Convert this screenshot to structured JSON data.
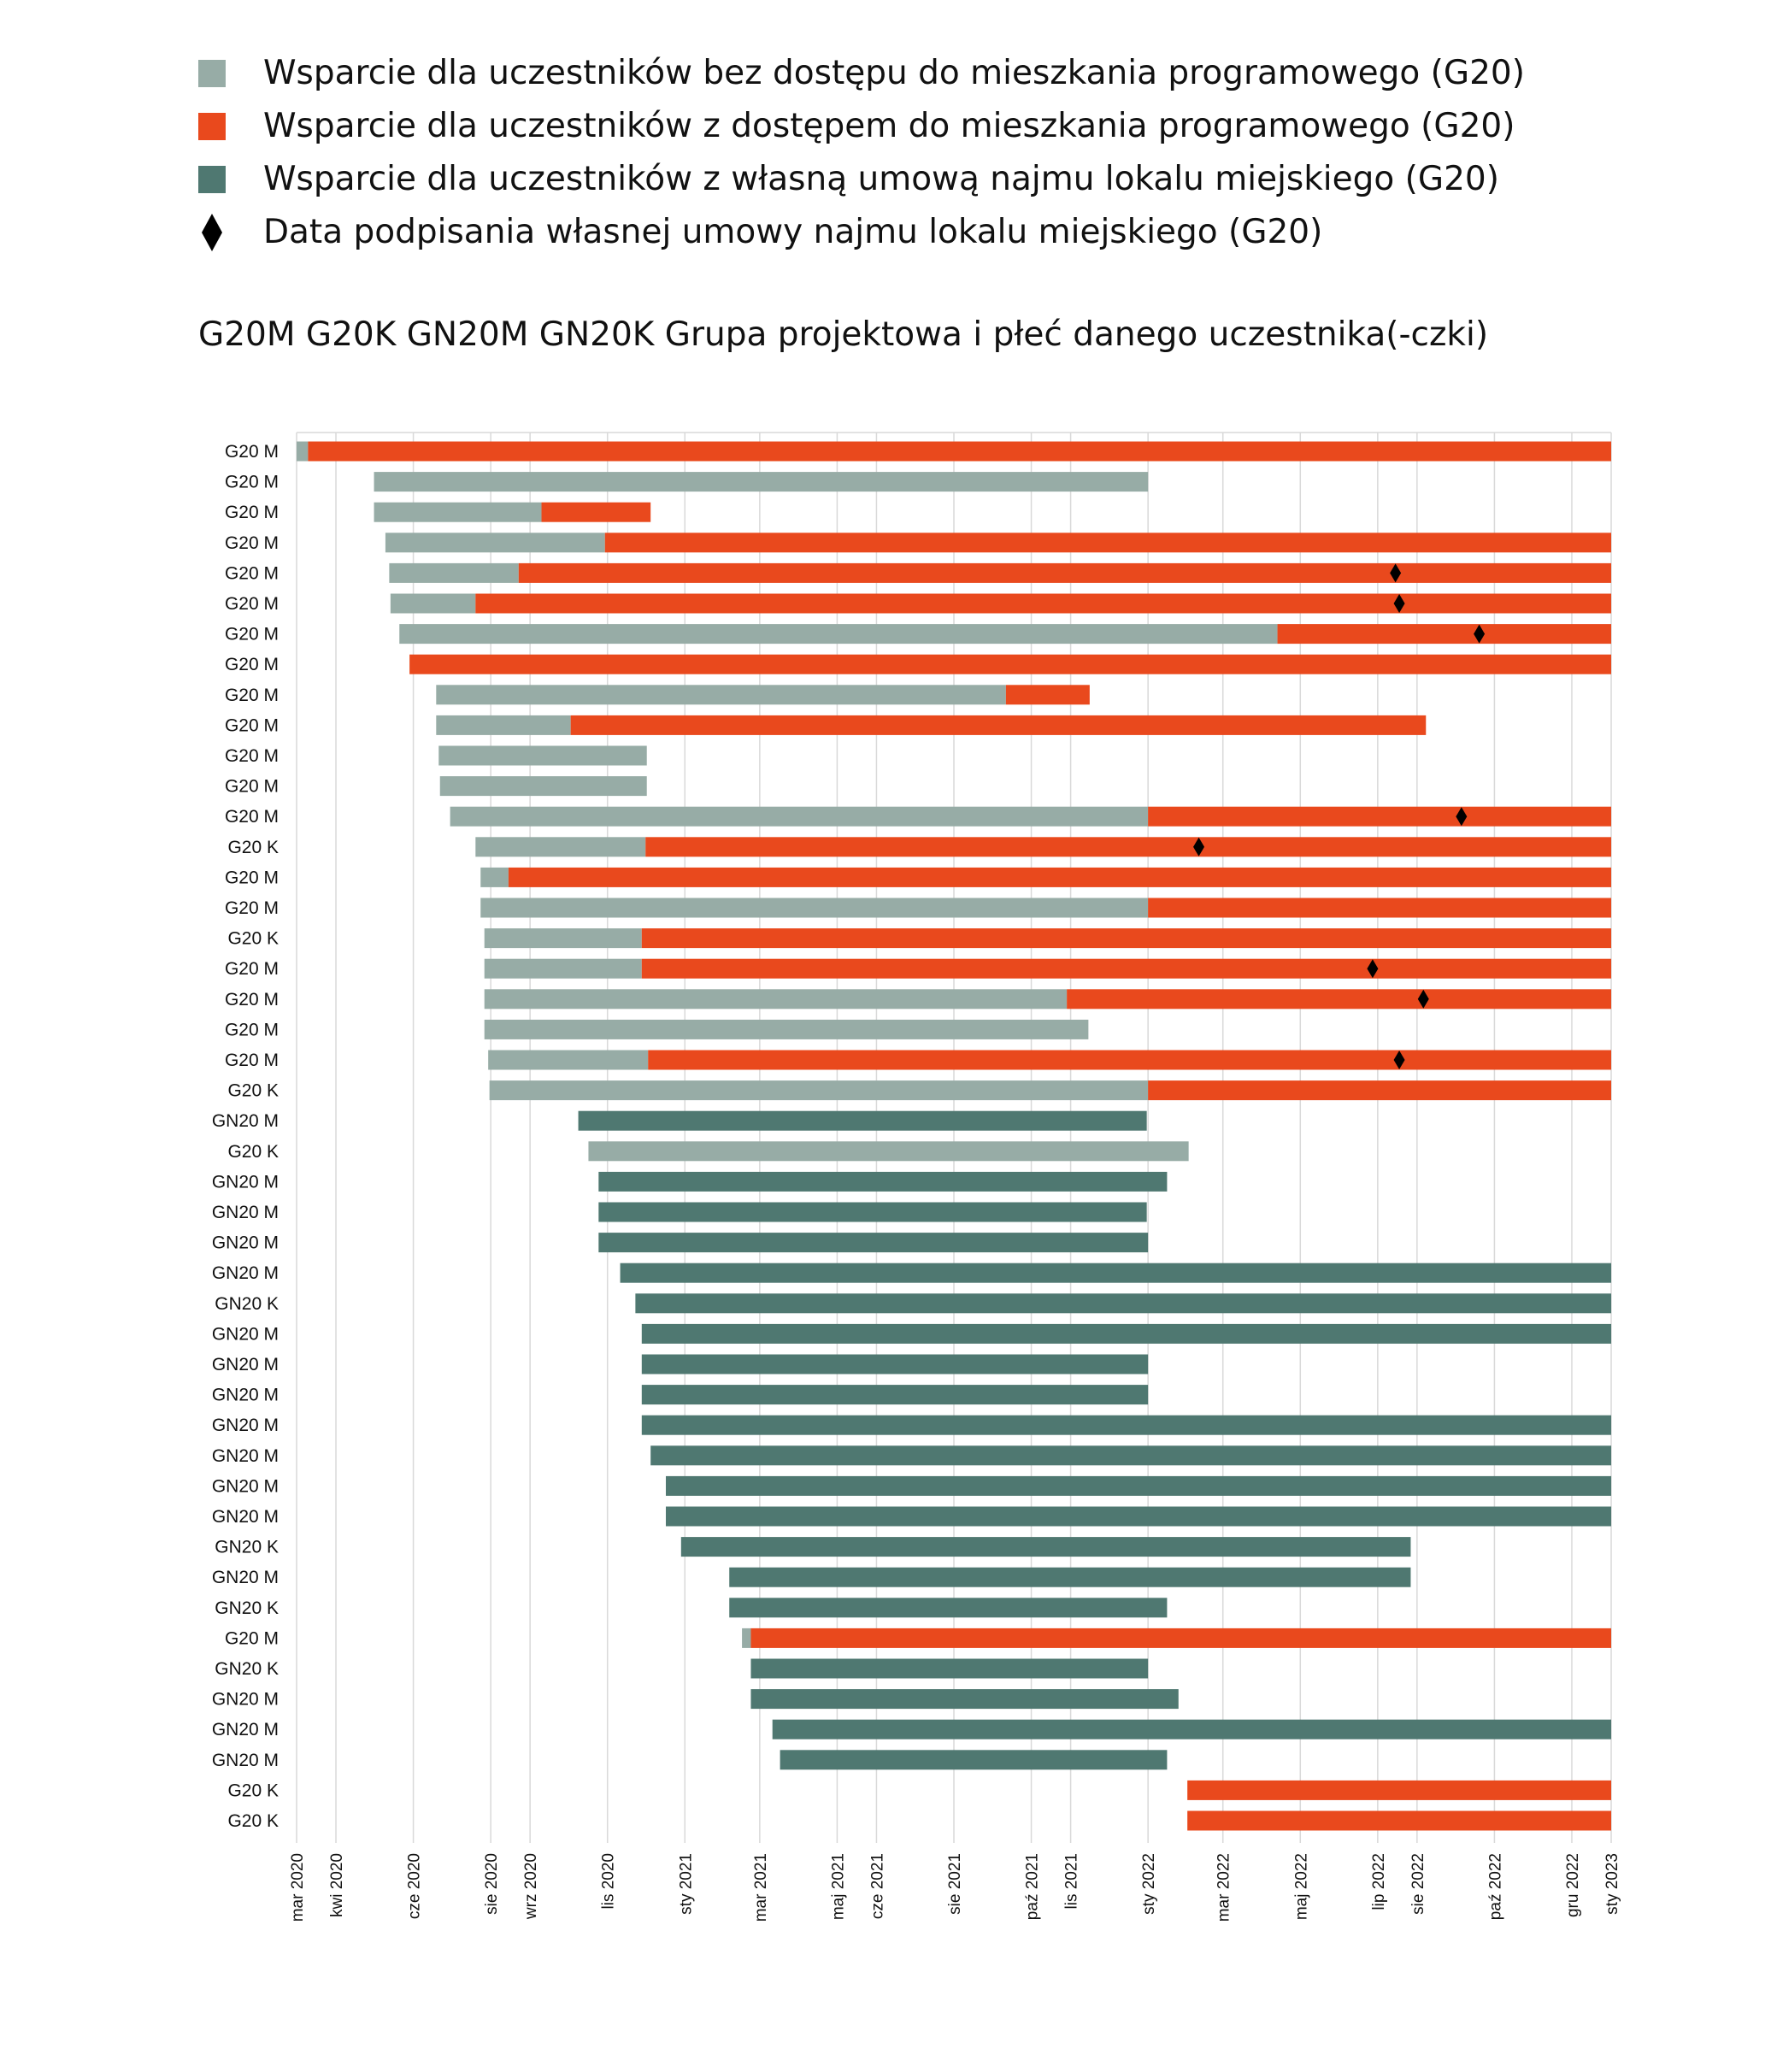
{
  "legend": [
    {
      "label": "Wsparcie dla uczestników bez dostępu do mieszkania programowego (G20)",
      "color": "#97aca6",
      "kind": "square"
    },
    {
      "label": "Wsparcie dla uczestników z dostępem do mieszkania programowego (G20)",
      "color": "#e9491d",
      "kind": "square"
    },
    {
      "label": "Wsparcie dla uczestników z własną umową najmu lokalu miejskiego (G20)",
      "color": "#4f7871",
      "kind": "square"
    },
    {
      "label": "Data podpisania własnej umowy najmu lokalu miejskiego (G20)",
      "color": "#000000",
      "kind": "diamond"
    }
  ],
  "group_title": "G20M G20K GN20M GN20K Grupa projektowa i płeć danego uczestnika(-czki)",
  "chart_data": {
    "type": "gantt",
    "x_ticks": [
      "mar 2020",
      "kwi 2020",
      "cze 2020",
      "sie 2020",
      "wrz 2020",
      "lis 2020",
      "sty 2021",
      "mar 2021",
      "maj 2021",
      "cze 2021",
      "sie 2021",
      "paź 2021",
      "lis 2021",
      "sty 2022",
      "mar 2022",
      "maj 2022",
      "lip 2022",
      "sie 2022",
      "paź 2022",
      "gru 2022",
      "sty 2023"
    ],
    "xlim": [
      "2020-03-01",
      "2023-01-01"
    ],
    "grid": true,
    "series_colors": {
      "no_housing": "#97aca6",
      "housing": "#e9491d",
      "own_lease": "#4f7871",
      "lease_signed": "#000000"
    },
    "rows": [
      {
        "label": "G20 M",
        "segments": [
          {
            "type": "no_housing",
            "start": "2020-03-01",
            "end": "2020-03-10"
          },
          {
            "type": "housing",
            "start": "2020-03-10",
            "end": "2023-01-01"
          }
        ]
      },
      {
        "label": "G20 M",
        "segments": [
          {
            "type": "no_housing",
            "start": "2020-05-01",
            "end": "2022-01-01"
          }
        ]
      },
      {
        "label": "G20 M",
        "segments": [
          {
            "type": "no_housing",
            "start": "2020-05-01",
            "end": "2020-09-10"
          },
          {
            "type": "housing",
            "start": "2020-09-10",
            "end": "2020-12-05"
          }
        ]
      },
      {
        "label": "G20 M",
        "segments": [
          {
            "type": "no_housing",
            "start": "2020-05-10",
            "end": "2020-10-30"
          },
          {
            "type": "housing",
            "start": "2020-10-30",
            "end": "2023-01-01"
          }
        ]
      },
      {
        "label": "G20 M",
        "segments": [
          {
            "type": "no_housing",
            "start": "2020-05-13",
            "end": "2020-08-23"
          },
          {
            "type": "housing",
            "start": "2020-08-23",
            "end": "2023-01-01"
          }
        ],
        "marker": "2022-07-15"
      },
      {
        "label": "G20 M",
        "segments": [
          {
            "type": "no_housing",
            "start": "2020-05-14",
            "end": "2020-07-20"
          },
          {
            "type": "housing",
            "start": "2020-07-20",
            "end": "2023-01-01"
          }
        ],
        "marker": "2022-07-18"
      },
      {
        "label": "G20 M",
        "segments": [
          {
            "type": "no_housing",
            "start": "2020-05-21",
            "end": "2022-04-13"
          },
          {
            "type": "housing",
            "start": "2022-04-13",
            "end": "2023-01-01"
          }
        ],
        "marker": "2022-09-19"
      },
      {
        "label": "G20 M",
        "segments": [
          {
            "type": "housing",
            "start": "2020-05-29",
            "end": "2023-01-01"
          }
        ]
      },
      {
        "label": "G20 M",
        "segments": [
          {
            "type": "no_housing",
            "start": "2020-06-19",
            "end": "2021-09-11"
          },
          {
            "type": "housing",
            "start": "2021-09-11",
            "end": "2021-11-16"
          }
        ]
      },
      {
        "label": "G20 M",
        "segments": [
          {
            "type": "no_housing",
            "start": "2020-06-19",
            "end": "2020-10-03"
          },
          {
            "type": "housing",
            "start": "2020-10-03",
            "end": "2022-08-08"
          }
        ]
      },
      {
        "label": "G20 M",
        "segments": [
          {
            "type": "no_housing",
            "start": "2020-06-21",
            "end": "2020-12-02"
          }
        ]
      },
      {
        "label": "G20 M",
        "segments": [
          {
            "type": "no_housing",
            "start": "2020-06-22",
            "end": "2020-12-02"
          }
        ]
      },
      {
        "label": "G20 M",
        "segments": [
          {
            "type": "no_housing",
            "start": "2020-06-30",
            "end": "2022-01-01"
          },
          {
            "type": "housing",
            "start": "2022-01-01",
            "end": "2023-01-01"
          }
        ],
        "marker": "2022-09-05"
      },
      {
        "label": "G20 K",
        "segments": [
          {
            "type": "no_housing",
            "start": "2020-07-20",
            "end": "2020-12-01"
          },
          {
            "type": "housing",
            "start": "2020-12-01",
            "end": "2023-01-01"
          }
        ],
        "marker": "2022-02-10"
      },
      {
        "label": "G20 M",
        "segments": [
          {
            "type": "no_housing",
            "start": "2020-07-24",
            "end": "2020-08-15"
          },
          {
            "type": "housing",
            "start": "2020-08-15",
            "end": "2023-01-01"
          }
        ]
      },
      {
        "label": "G20 M",
        "segments": [
          {
            "type": "no_housing",
            "start": "2020-07-24",
            "end": "2022-01-01"
          },
          {
            "type": "housing",
            "start": "2022-01-01",
            "end": "2023-01-01"
          }
        ]
      },
      {
        "label": "G20 K",
        "segments": [
          {
            "type": "no_housing",
            "start": "2020-07-27",
            "end": "2020-11-28"
          },
          {
            "type": "housing",
            "start": "2020-11-28",
            "end": "2023-01-01"
          }
        ]
      },
      {
        "label": "G20 M",
        "segments": [
          {
            "type": "no_housing",
            "start": "2020-07-27",
            "end": "2020-11-28"
          },
          {
            "type": "housing",
            "start": "2020-11-28",
            "end": "2023-01-01"
          }
        ],
        "marker": "2022-06-27"
      },
      {
        "label": "G20 M",
        "segments": [
          {
            "type": "no_housing",
            "start": "2020-07-27",
            "end": "2021-10-29"
          },
          {
            "type": "housing",
            "start": "2021-10-29",
            "end": "2023-01-01"
          }
        ],
        "marker": "2022-08-06"
      },
      {
        "label": "G20 M",
        "segments": [
          {
            "type": "no_housing",
            "start": "2020-07-27",
            "end": "2021-11-15"
          }
        ]
      },
      {
        "label": "G20 M",
        "segments": [
          {
            "type": "no_housing",
            "start": "2020-07-30",
            "end": "2020-12-03"
          },
          {
            "type": "housing",
            "start": "2020-12-03",
            "end": "2023-01-01"
          }
        ],
        "marker": "2022-07-18"
      },
      {
        "label": "G20 K",
        "segments": [
          {
            "type": "no_housing",
            "start": "2020-07-31",
            "end": "2022-01-01"
          },
          {
            "type": "housing",
            "start": "2022-01-01",
            "end": "2023-01-01"
          }
        ]
      },
      {
        "label": "GN20 M",
        "segments": [
          {
            "type": "own_lease",
            "start": "2020-10-09",
            "end": "2021-12-31"
          }
        ]
      },
      {
        "label": "G20 K",
        "segments": [
          {
            "type": "no_housing",
            "start": "2020-10-17",
            "end": "2022-02-02"
          }
        ]
      },
      {
        "label": "GN20 M",
        "segments": [
          {
            "type": "own_lease",
            "start": "2020-10-25",
            "end": "2022-01-16"
          }
        ]
      },
      {
        "label": "GN20 M",
        "segments": [
          {
            "type": "own_lease",
            "start": "2020-10-25",
            "end": "2021-12-31"
          }
        ]
      },
      {
        "label": "GN20 M",
        "segments": [
          {
            "type": "own_lease",
            "start": "2020-10-25",
            "end": "2022-01-01"
          }
        ]
      },
      {
        "label": "GN20 M",
        "segments": [
          {
            "type": "own_lease",
            "start": "2020-11-11",
            "end": "2023-01-01"
          }
        ]
      },
      {
        "label": "GN20 K",
        "segments": [
          {
            "type": "own_lease",
            "start": "2020-11-23",
            "end": "2023-01-01"
          }
        ]
      },
      {
        "label": "GN20 M",
        "segments": [
          {
            "type": "own_lease",
            "start": "2020-11-28",
            "end": "2023-01-01"
          }
        ]
      },
      {
        "label": "GN20 M",
        "segments": [
          {
            "type": "own_lease",
            "start": "2020-11-28",
            "end": "2022-01-01"
          }
        ]
      },
      {
        "label": "GN20 M",
        "segments": [
          {
            "type": "own_lease",
            "start": "2020-11-28",
            "end": "2022-01-01"
          }
        ]
      },
      {
        "label": "GN20 M",
        "segments": [
          {
            "type": "own_lease",
            "start": "2020-11-28",
            "end": "2023-01-01"
          }
        ]
      },
      {
        "label": "GN20 M",
        "segments": [
          {
            "type": "own_lease",
            "start": "2020-12-05",
            "end": "2023-01-01"
          }
        ]
      },
      {
        "label": "GN20 M",
        "segments": [
          {
            "type": "own_lease",
            "start": "2020-12-17",
            "end": "2023-01-01"
          }
        ]
      },
      {
        "label": "GN20 M",
        "segments": [
          {
            "type": "own_lease",
            "start": "2020-12-17",
            "end": "2023-01-01"
          }
        ]
      },
      {
        "label": "GN20 K",
        "segments": [
          {
            "type": "own_lease",
            "start": "2020-12-29",
            "end": "2022-07-27"
          }
        ]
      },
      {
        "label": "GN20 M",
        "segments": [
          {
            "type": "own_lease",
            "start": "2021-02-05",
            "end": "2022-07-27"
          }
        ]
      },
      {
        "label": "GN20 K",
        "segments": [
          {
            "type": "own_lease",
            "start": "2021-02-05",
            "end": "2022-01-16"
          }
        ]
      },
      {
        "label": "G20 M",
        "segments": [
          {
            "type": "no_housing",
            "start": "2021-02-15",
            "end": "2021-02-22"
          },
          {
            "type": "housing",
            "start": "2021-02-22",
            "end": "2023-01-01"
          }
        ]
      },
      {
        "label": "GN20 K",
        "segments": [
          {
            "type": "own_lease",
            "start": "2021-02-22",
            "end": "2022-01-01"
          }
        ]
      },
      {
        "label": "GN20 M",
        "segments": [
          {
            "type": "own_lease",
            "start": "2021-02-22",
            "end": "2022-01-25"
          }
        ]
      },
      {
        "label": "GN20 M",
        "segments": [
          {
            "type": "own_lease",
            "start": "2021-03-11",
            "end": "2023-01-01"
          }
        ]
      },
      {
        "label": "GN20 M",
        "segments": [
          {
            "type": "own_lease",
            "start": "2021-03-17",
            "end": "2022-01-16"
          }
        ]
      },
      {
        "label": "G20 K",
        "segments": [
          {
            "type": "housing",
            "start": "2022-02-01",
            "end": "2023-01-01"
          }
        ]
      },
      {
        "label": "G20 K",
        "segments": [
          {
            "type": "housing",
            "start": "2022-02-01",
            "end": "2023-01-01"
          }
        ]
      }
    ]
  }
}
